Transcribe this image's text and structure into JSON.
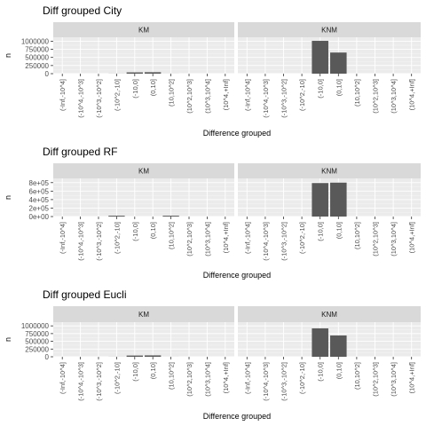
{
  "colors": {
    "panel_bg": "#ebebeb",
    "strip_bg": "#d9d9d9",
    "grid_major": "#ffffff",
    "bar": "#595959"
  },
  "chart_data": [
    {
      "type": "bar",
      "title": "Diff grouped City",
      "xlabel": "Difference grouped",
      "ylabel": "n",
      "facets": [
        "KM",
        "KNM"
      ],
      "categories": [
        "(-Inf,-10^4]",
        "(-10^4,-10^3]",
        "(-10^3,-10^2]",
        "(-10^2,-10]",
        "(-10,0]",
        "(0,10]",
        "(10,10^2]",
        "(10^2,10^3]",
        "(10^3,10^4]",
        "(10^4,+Inf]"
      ],
      "series": [
        {
          "name": "KM",
          "values": [
            0,
            0,
            0,
            2000,
            40000,
            45000,
            1000,
            0,
            0,
            0
          ]
        },
        {
          "name": "KNM",
          "values": [
            0,
            0,
            0,
            0,
            1010000,
            650000,
            0,
            0,
            0,
            0
          ]
        }
      ],
      "yticks": [
        0,
        250000,
        500000,
        750000,
        1000000
      ],
      "ytick_labels": [
        "0",
        "250000",
        "500000",
        "750000",
        "1000000"
      ],
      "ylim": [
        0,
        1120000
      ],
      "grid": true
    },
    {
      "type": "bar",
      "title": "Diff grouped RF",
      "xlabel": "Difference grouped",
      "ylabel": "n",
      "facets": [
        "KM",
        "KNM"
      ],
      "categories": [
        "(-Inf,-10^4]",
        "(-10^4,-10^3]",
        "(-10^3,-10^2]",
        "(-10^2,-10]",
        "(-10,0]",
        "(0,10]",
        "(10,10^2]",
        "(10^2,10^3]",
        "(10^3,10^4]",
        "(10^4,+Inf]"
      ],
      "series": [
        {
          "name": "KM",
          "values": [
            0,
            0,
            0,
            20000,
            0,
            0,
            20000,
            0,
            0,
            0
          ]
        },
        {
          "name": "KNM",
          "values": [
            0,
            0,
            0,
            0,
            790000,
            800000,
            0,
            0,
            0,
            0
          ]
        }
      ],
      "yticks": [
        0,
        200000,
        400000,
        600000,
        800000
      ],
      "ytick_labels": [
        "0e+00",
        "2e+05",
        "4e+05",
        "6e+05",
        "8e+05"
      ],
      "ylim": [
        0,
        900000
      ],
      "grid": true
    },
    {
      "type": "bar",
      "title": "Diff grouped Eucli",
      "xlabel": "Difference grouped",
      "ylabel": "n",
      "facets": [
        "KM",
        "KNM"
      ],
      "categories": [
        "(-Inf,-10^4]",
        "(-10^4,-10^3]",
        "(-10^3,-10^2]",
        "(-10^2,-10]",
        "(-10,0]",
        "(0,10]",
        "(10,10^2]",
        "(10^2,10^3]",
        "(10^3,10^4]",
        "(10^4,+Inf]"
      ],
      "series": [
        {
          "name": "KM",
          "values": [
            0,
            0,
            0,
            2000,
            40000,
            45000,
            1000,
            0,
            0,
            0
          ]
        },
        {
          "name": "KNM",
          "values": [
            0,
            0,
            0,
            0,
            920000,
            690000,
            0,
            0,
            0,
            0
          ]
        }
      ],
      "yticks": [
        0,
        250000,
        500000,
        750000,
        1000000
      ],
      "ytick_labels": [
        "0",
        "250000",
        "500000",
        "750000",
        "1000000"
      ],
      "ylim": [
        0,
        1120000
      ],
      "grid": true
    }
  ]
}
